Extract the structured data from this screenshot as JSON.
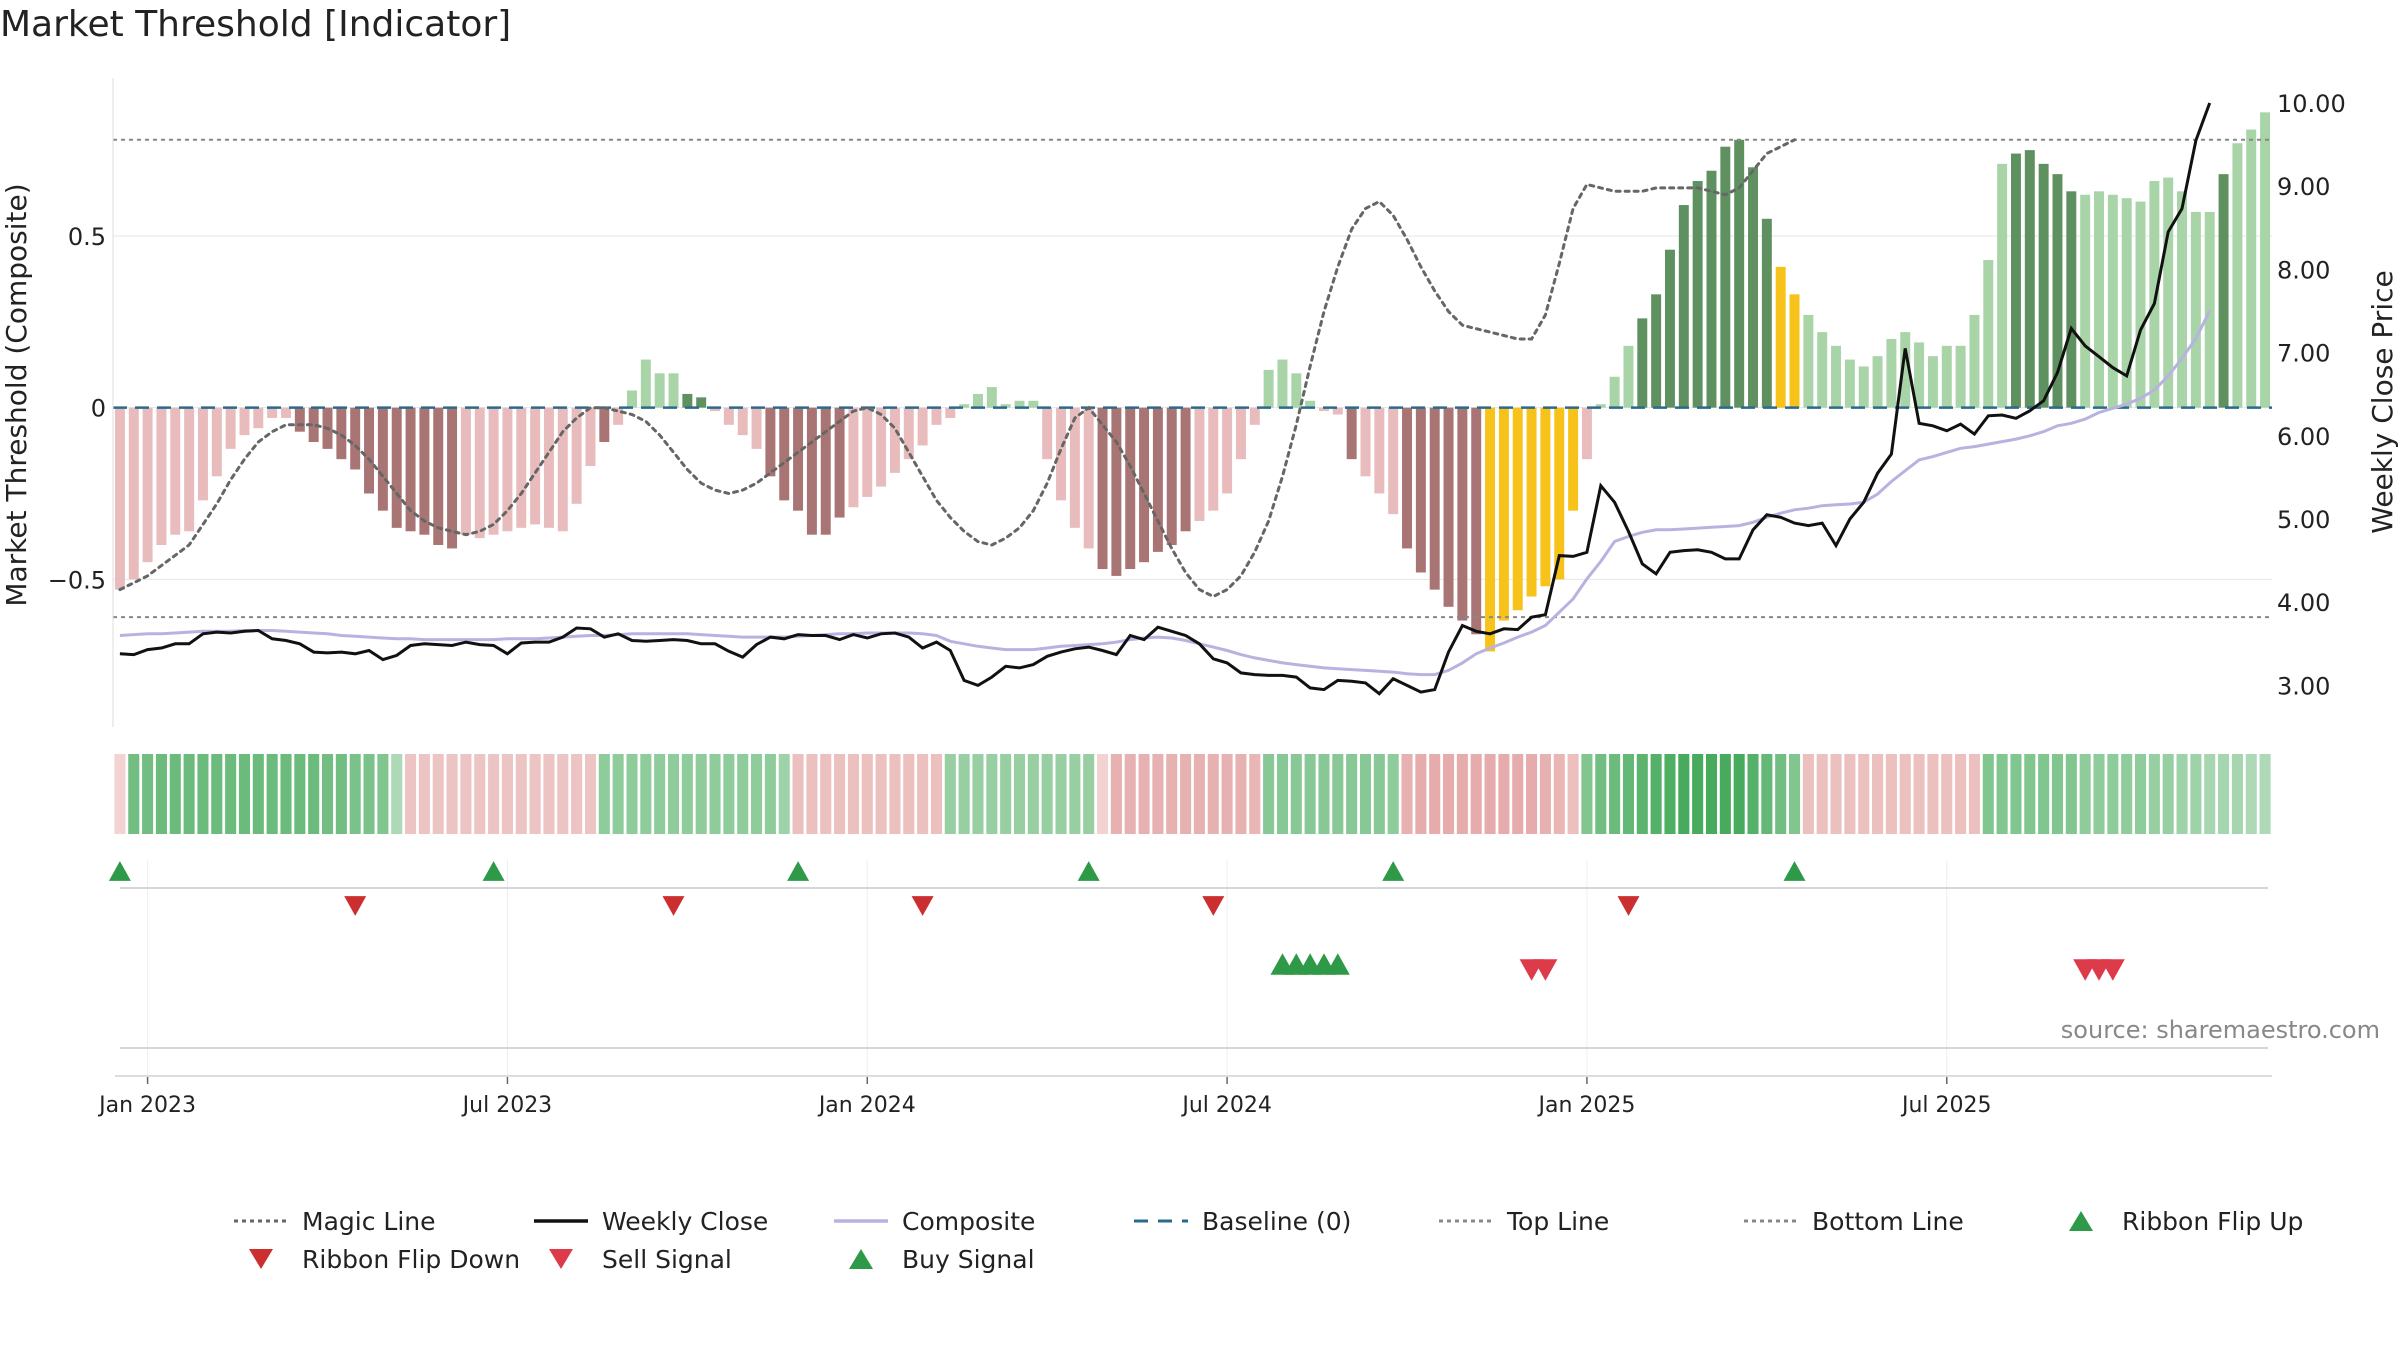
{
  "chart_data": {
    "type": "bar",
    "title": "Market Threshold [Indicator]",
    "ylabel_left": "Market Threshold (Composite)",
    "ylabel_right": "Weekly Close Price",
    "source": "source: sharemaestro.com",
    "x_ticks": [
      "Jan 2023",
      "Jul 2023",
      "Jan 2024",
      "Jul 2024",
      "Jan 2025",
      "Jul 2025"
    ],
    "x_tick_weeks": [
      2,
      28,
      54,
      80,
      106,
      132
    ],
    "y_left_ticks": [
      -0.5,
      0,
      0.5
    ],
    "y_left_tick_labels": [
      "−0.5",
      "0",
      "0.5"
    ],
    "y_left_range": [
      -0.93,
      0.96
    ],
    "y_right_ticks": [
      3,
      4,
      5,
      6,
      7,
      8,
      9,
      10
    ],
    "y_right_tick_labels": [
      "3.00",
      "4.00",
      "5.00",
      "6.00",
      "7.00",
      "8.00",
      "9.00",
      "10.00"
    ],
    "y_right_range": [
      2.5,
      10.3
    ],
    "top_line": 0.78,
    "bottom_line": -0.61,
    "baseline": 0,
    "composite_bars": [
      -0.53,
      -0.5,
      -0.45,
      -0.4,
      -0.37,
      -0.36,
      -0.27,
      -0.2,
      -0.12,
      -0.08,
      -0.06,
      -0.03,
      -0.03,
      -0.07,
      -0.1,
      -0.12,
      -0.15,
      -0.18,
      -0.25,
      -0.3,
      -0.35,
      -0.36,
      -0.37,
      -0.4,
      -0.41,
      -0.37,
      -0.38,
      -0.37,
      -0.36,
      -0.35,
      -0.34,
      -0.35,
      -0.36,
      -0.28,
      -0.17,
      -0.1,
      -0.05,
      0.05,
      0.14,
      0.1,
      0.1,
      0.04,
      0.03,
      -0.01,
      -0.05,
      -0.08,
      -0.12,
      -0.2,
      -0.27,
      -0.3,
      -0.37,
      -0.37,
      -0.32,
      -0.29,
      -0.26,
      -0.23,
      -0.19,
      -0.15,
      -0.11,
      -0.05,
      -0.03,
      0.01,
      0.04,
      0.06,
      0.01,
      0.02,
      0.02,
      -0.15,
      -0.27,
      -0.35,
      -0.41,
      -0.47,
      -0.49,
      -0.47,
      -0.45,
      -0.42,
      -0.4,
      -0.36,
      -0.33,
      -0.3,
      -0.25,
      -0.15,
      -0.05,
      0.11,
      0.14,
      0.1,
      0.02,
      -0.01,
      -0.02,
      -0.15,
      -0.2,
      -0.25,
      -0.31,
      -0.41,
      -0.48,
      -0.53,
      -0.58,
      -0.62,
      -0.66,
      -0.71,
      -0.62,
      -0.59,
      -0.55,
      -0.52,
      -0.5,
      -0.3,
      -0.15,
      0.01,
      0.09,
      0.18,
      0.26,
      0.33,
      0.46,
      0.59,
      0.66,
      0.69,
      0.76,
      0.78,
      0.7,
      0.55,
      0.41,
      0.33,
      0.27,
      0.22,
      0.18,
      0.14,
      0.12,
      0.15,
      0.2,
      0.22,
      0.19,
      0.15,
      0.18,
      0.18,
      0.27,
      0.43,
      0.71,
      0.74,
      0.75,
      0.71,
      0.68,
      0.63,
      0.62,
      0.63,
      0.62,
      0.61,
      0.6,
      0.66,
      0.67,
      0.63,
      0.57,
      0.57,
      0.68,
      0.77,
      0.81,
      0.86
    ],
    "bar_states": "LLLLLLLLLLLLLDDDDDDDDDDDDLLLLLLLLLLDLLLLLGGLLLLDDDDDDLLLLLLLLLLLLLLLLLLDDDDDDDLLLLLLLLLLLGLLLDDDDDDYYYYYYYLLLLGGGGGGGGGGYYLLLLLLLLLLLLLLLGGGGGLLLLLLLLLLGLLLYYYY",
    "weekly_close": [
      3.38,
      3.37,
      3.43,
      3.45,
      3.5,
      3.5,
      3.62,
      3.64,
      3.63,
      3.65,
      3.66,
      3.56,
      3.54,
      3.5,
      3.4,
      3.39,
      3.4,
      3.38,
      3.42,
      3.31,
      3.36,
      3.48,
      3.5,
      3.49,
      3.48,
      3.52,
      3.49,
      3.48,
      3.38,
      3.51,
      3.52,
      3.52,
      3.58,
      3.69,
      3.68,
      3.58,
      3.62,
      3.54,
      3.53,
      3.54,
      3.55,
      3.54,
      3.5,
      3.5,
      3.41,
      3.34,
      3.49,
      3.58,
      3.56,
      3.61,
      3.6,
      3.6,
      3.55,
      3.61,
      3.57,
      3.62,
      3.63,
      3.58,
      3.45,
      3.52,
      3.42,
      3.06,
      3.0,
      3.1,
      3.23,
      3.21,
      3.25,
      3.35,
      3.4,
      3.44,
      3.46,
      3.42,
      3.37,
      3.6,
      3.55,
      3.7,
      3.65,
      3.6,
      3.5,
      3.32,
      3.27,
      3.15,
      3.13,
      3.12,
      3.12,
      3.1,
      2.97,
      2.95,
      3.06,
      3.05,
      3.03,
      2.9,
      3.08,
      3.0,
      2.92,
      2.95,
      3.4,
      3.72,
      3.65,
      3.62,
      3.68,
      3.67,
      3.82,
      3.85,
      4.56,
      4.55,
      4.6,
      5.4,
      5.2,
      4.85,
      4.46,
      4.34,
      4.6,
      4.62,
      4.63,
      4.6,
      4.52,
      4.52,
      4.87,
      5.05,
      5.02,
      4.95,
      4.92,
      4.95,
      4.68,
      5.0,
      5.2,
      5.55,
      5.78,
      7.05,
      6.15,
      6.12,
      6.06,
      6.14,
      6.02,
      6.24,
      6.25,
      6.21,
      6.3,
      6.42,
      6.76,
      7.29,
      7.08,
      6.95,
      6.82,
      6.72,
      7.27,
      7.59,
      8.45,
      8.73,
      9.55,
      10.0
    ],
    "composite_price": [
      3.6,
      3.61,
      3.62,
      3.62,
      3.63,
      3.64,
      3.65,
      3.65,
      3.65,
      3.66,
      3.66,
      3.66,
      3.65,
      3.64,
      3.63,
      3.62,
      3.6,
      3.59,
      3.58,
      3.57,
      3.56,
      3.56,
      3.55,
      3.55,
      3.55,
      3.55,
      3.55,
      3.55,
      3.56,
      3.56,
      3.56,
      3.57,
      3.58,
      3.59,
      3.6,
      3.6,
      3.61,
      3.62,
      3.62,
      3.62,
      3.62,
      3.62,
      3.61,
      3.6,
      3.59,
      3.58,
      3.58,
      3.58,
      3.58,
      3.59,
      3.6,
      3.61,
      3.62,
      3.62,
      3.63,
      3.63,
      3.63,
      3.63,
      3.62,
      3.6,
      3.53,
      3.5,
      3.47,
      3.45,
      3.43,
      3.43,
      3.43,
      3.45,
      3.47,
      3.48,
      3.49,
      3.5,
      3.52,
      3.55,
      3.57,
      3.58,
      3.57,
      3.54,
      3.5,
      3.46,
      3.42,
      3.37,
      3.33,
      3.3,
      3.27,
      3.25,
      3.23,
      3.21,
      3.2,
      3.19,
      3.18,
      3.17,
      3.16,
      3.14,
      3.13,
      3.13,
      3.18,
      3.27,
      3.38,
      3.45,
      3.51,
      3.58,
      3.64,
      3.72,
      3.88,
      4.04,
      4.28,
      4.49,
      4.73,
      4.79,
      4.84,
      4.87,
      4.87,
      4.88,
      4.89,
      4.9,
      4.91,
      4.92,
      4.96,
      5.02,
      5.07,
      5.11,
      5.13,
      5.16,
      5.17,
      5.18,
      5.2,
      5.3,
      5.45,
      5.58,
      5.71,
      5.75,
      5.8,
      5.85,
      5.87,
      5.9,
      5.93,
      5.96,
      6.0,
      6.05,
      6.12,
      6.15,
      6.2,
      6.28,
      6.33,
      6.38,
      6.45,
      6.55,
      6.72,
      6.93,
      7.17,
      7.5
    ],
    "magic_line": [
      -0.53,
      -0.51,
      -0.49,
      -0.46,
      -0.43,
      -0.4,
      -0.34,
      -0.28,
      -0.21,
      -0.15,
      -0.1,
      -0.07,
      -0.05,
      -0.05,
      -0.05,
      -0.06,
      -0.08,
      -0.11,
      -0.15,
      -0.2,
      -0.25,
      -0.3,
      -0.33,
      -0.35,
      -0.36,
      -0.37,
      -0.36,
      -0.34,
      -0.3,
      -0.25,
      -0.19,
      -0.13,
      -0.07,
      -0.03,
      0.0,
      0.0,
      -0.01,
      -0.02,
      -0.04,
      -0.08,
      -0.13,
      -0.18,
      -0.22,
      -0.24,
      -0.25,
      -0.24,
      -0.22,
      -0.19,
      -0.16,
      -0.13,
      -0.1,
      -0.07,
      -0.04,
      -0.01,
      0.0,
      -0.02,
      -0.06,
      -0.13,
      -0.2,
      -0.27,
      -0.32,
      -0.36,
      -0.39,
      -0.4,
      -0.38,
      -0.35,
      -0.3,
      -0.22,
      -0.12,
      -0.03,
      0.0,
      -0.05,
      -0.1,
      -0.17,
      -0.25,
      -0.33,
      -0.41,
      -0.48,
      -0.53,
      -0.55,
      -0.53,
      -0.49,
      -0.42,
      -0.33,
      -0.2,
      -0.05,
      0.12,
      0.28,
      0.41,
      0.52,
      0.58,
      0.6,
      0.56,
      0.49,
      0.41,
      0.34,
      0.28,
      0.24,
      0.23,
      0.22,
      0.21,
      0.2,
      0.2,
      0.27,
      0.42,
      0.58,
      0.65,
      0.64,
      0.63,
      0.63,
      0.63,
      0.64,
      0.64,
      0.64,
      0.64,
      0.63,
      0.62,
      0.64,
      0.69,
      0.74,
      0.76,
      0.78
    ],
    "ribbon_strength": [
      -0.2,
      0.7,
      0.7,
      0.75,
      0.75,
      0.75,
      0.75,
      0.75,
      0.75,
      0.75,
      0.75,
      0.75,
      0.75,
      0.75,
      0.75,
      0.7,
      0.7,
      0.65,
      0.65,
      0.6,
      0.3,
      -0.35,
      -0.35,
      -0.35,
      -0.35,
      -0.35,
      -0.35,
      -0.35,
      -0.35,
      -0.35,
      -0.35,
      -0.35,
      -0.35,
      -0.35,
      -0.35,
      0.5,
      0.5,
      0.5,
      0.5,
      0.5,
      0.5,
      0.5,
      0.5,
      0.5,
      0.5,
      0.5,
      0.5,
      0.5,
      0.4,
      -0.4,
      -0.4,
      -0.4,
      -0.4,
      -0.4,
      -0.4,
      -0.4,
      -0.4,
      -0.4,
      -0.4,
      -0.4,
      0.45,
      0.45,
      0.45,
      0.45,
      0.45,
      0.45,
      0.45,
      0.45,
      0.45,
      0.45,
      0.45,
      -0.2,
      -0.55,
      -0.55,
      -0.55,
      -0.55,
      -0.55,
      -0.55,
      -0.55,
      -0.55,
      -0.55,
      -0.55,
      -0.5,
      0.55,
      0.55,
      0.55,
      0.55,
      0.55,
      0.55,
      0.55,
      0.55,
      0.55,
      0.5,
      -0.55,
      -0.6,
      -0.6,
      -0.6,
      -0.6,
      -0.6,
      -0.6,
      -0.6,
      -0.6,
      -0.6,
      -0.55,
      -0.5,
      -0.4,
      0.6,
      0.7,
      0.75,
      0.8,
      0.85,
      0.9,
      0.95,
      1.0,
      1.0,
      1.0,
      1.0,
      1.0,
      0.9,
      0.8,
      0.7,
      0.6,
      -0.4,
      -0.4,
      -0.4,
      -0.4,
      -0.4,
      -0.4,
      -0.4,
      -0.4,
      -0.4,
      -0.4,
      -0.4,
      -0.4,
      -0.4,
      0.6,
      0.6,
      0.6,
      0.6,
      0.6,
      0.6,
      0.6,
      0.5,
      0.5,
      0.5,
      0.5,
      0.5,
      0.45,
      0.45,
      0.4,
      0.4,
      0.35,
      0.35,
      0.35,
      0.3,
      0.3
    ],
    "ribbon_flip_up_weeks": [
      0,
      27,
      49,
      70,
      92,
      121
    ],
    "ribbon_flip_down_weeks": [
      17,
      40,
      58,
      79,
      109
    ],
    "buy_signal_weeks": [
      84,
      85,
      86,
      87,
      88
    ],
    "sell_signal_weeks": [
      102,
      103,
      142,
      143,
      144
    ],
    "legend": [
      {
        "name": "Magic Line",
        "icon": "dotted-line-icon",
        "color": "#666666"
      },
      {
        "name": "Weekly Close",
        "icon": "solid-line-icon",
        "color": "#111111"
      },
      {
        "name": "Composite",
        "icon": "solid-line-icon",
        "color": "#b8b2e0"
      },
      {
        "name": "Baseline (0)",
        "icon": "dashed-line-icon",
        "color": "#2b6a8c"
      },
      {
        "name": "Top Line",
        "icon": "dotted-line-icon",
        "color": "#888888"
      },
      {
        "name": "Bottom Line",
        "icon": "dotted-line-icon",
        "color": "#888888"
      },
      {
        "name": "Ribbon Flip Up",
        "icon": "triangle-up-icon",
        "color": "#2e9a48"
      },
      {
        "name": "Ribbon Flip Down",
        "icon": "triangle-down-icon",
        "color": "#cc2f2f"
      },
      {
        "name": "Sell Signal",
        "icon": "triangle-down-icon",
        "color": "#dd3a4a"
      },
      {
        "name": "Buy Signal",
        "icon": "triangle-up-icon",
        "color": "#2e9a48"
      }
    ],
    "colors": {
      "bar_light_red": "#e8bcbc",
      "bar_dark_red": "#a87474",
      "bar_light_green": "#a8d4a8",
      "bar_dark_green": "#5f9160",
      "bar_yellow": "#f7c31a",
      "ribbon_green": "#3da653",
      "ribbon_red": "#d9807f"
    }
  }
}
